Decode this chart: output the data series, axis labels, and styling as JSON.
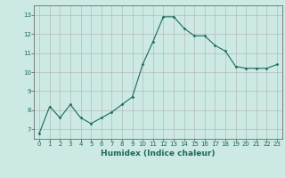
{
  "x": [
    0,
    1,
    2,
    3,
    4,
    5,
    6,
    7,
    8,
    9,
    10,
    11,
    12,
    13,
    14,
    15,
    16,
    17,
    18,
    19,
    20,
    21,
    22,
    23
  ],
  "y": [
    6.8,
    8.2,
    7.6,
    8.3,
    7.6,
    7.3,
    7.6,
    7.9,
    8.3,
    8.7,
    10.4,
    11.6,
    12.9,
    12.9,
    12.3,
    11.9,
    11.9,
    11.4,
    11.1,
    10.3,
    10.2,
    10.2,
    10.2,
    10.4
  ],
  "line_color": "#1a6b5a",
  "marker": "D",
  "marker_size": 1.5,
  "bg_color": "#cce9e4",
  "grid_color": "#b0b0b0",
  "xlabel": "Humidex (Indice chaleur)",
  "xlim": [
    -0.5,
    23.5
  ],
  "ylim": [
    6.5,
    13.5
  ],
  "yticks": [
    7,
    8,
    9,
    10,
    11,
    12,
    13
  ],
  "xticks": [
    0,
    1,
    2,
    3,
    4,
    5,
    6,
    7,
    8,
    9,
    10,
    11,
    12,
    13,
    14,
    15,
    16,
    17,
    18,
    19,
    20,
    21,
    22,
    23
  ],
  "tick_label_fontsize": 5,
  "xlabel_fontsize": 6.5,
  "axis_color": "#1a6b5a",
  "spine_color": "#555555",
  "linewidth": 0.8
}
